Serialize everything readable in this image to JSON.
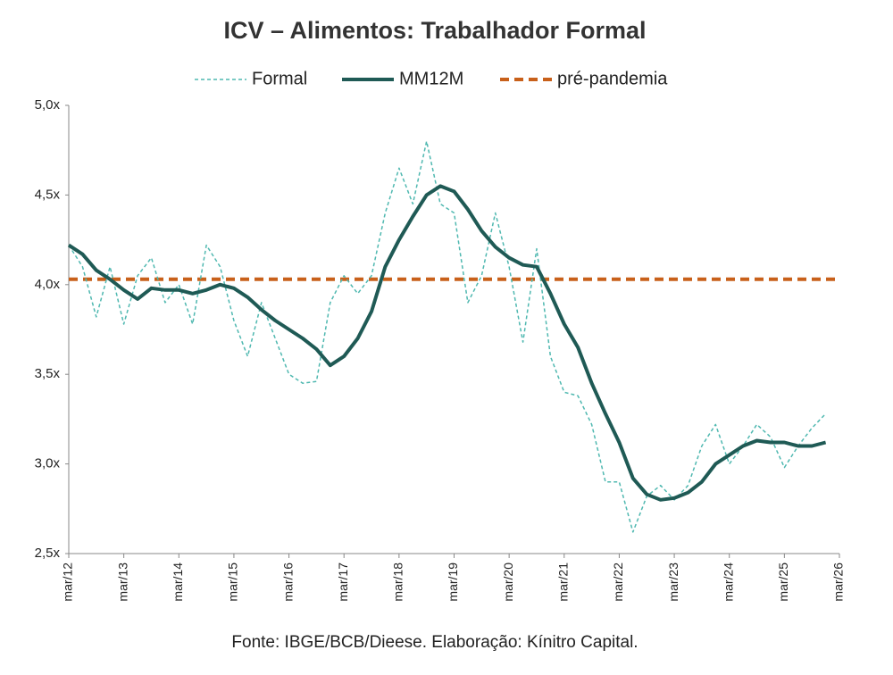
{
  "chart_data": {
    "type": "line",
    "title": "ICV – Alimentos: Trabalhador Formal",
    "source": "Fonte: IBGE/BCB/Dieese. Elaboração: Kínitro Capital.",
    "categories": [
      "mar/12",
      null,
      null,
      null,
      "mar/13",
      null,
      null,
      null,
      "mar/14",
      null,
      null,
      null,
      "mar/15",
      null,
      null,
      null,
      "mar/16",
      null,
      null,
      null,
      "mar/17",
      null,
      null,
      null,
      "mar/18",
      null,
      null,
      null,
      "mar/19",
      null,
      null,
      null,
      "mar/20",
      null,
      null,
      null,
      "mar/21",
      null,
      null,
      null,
      "mar/22",
      null,
      null,
      null,
      "mar/23",
      null,
      null,
      null,
      "mar/24",
      null,
      null,
      null,
      "mar/25",
      null,
      null,
      null,
      "mar/26"
    ],
    "series": [
      {
        "name": "Formal",
        "color": "#4fb8b0",
        "dashed": true,
        "width": 1.5,
        "values": [
          4.22,
          4.1,
          3.82,
          4.1,
          3.78,
          4.05,
          4.15,
          3.9,
          4.0,
          3.78,
          4.22,
          4.1,
          3.8,
          3.6,
          3.9,
          3.7,
          3.5,
          3.45,
          3.46,
          3.9,
          4.05,
          3.95,
          4.05,
          4.4,
          4.65,
          4.45,
          4.8,
          4.45,
          4.4,
          3.9,
          4.05,
          4.4,
          4.1,
          3.68,
          4.2,
          3.6,
          3.4,
          3.38,
          3.22,
          2.9,
          2.9,
          2.62,
          2.82,
          2.88,
          2.8,
          2.88,
          3.1,
          3.22,
          3.0,
          3.1,
          3.22,
          3.15,
          2.98,
          3.1,
          3.2,
          3.28,
          null
        ]
      },
      {
        "name": "MM12M",
        "color": "#1f5a55",
        "dashed": false,
        "width": 4,
        "values": [
          4.22,
          4.17,
          4.08,
          4.03,
          3.97,
          3.92,
          3.98,
          3.97,
          3.97,
          3.95,
          3.97,
          4.0,
          3.98,
          3.93,
          3.86,
          3.8,
          3.75,
          3.7,
          3.64,
          3.55,
          3.6,
          3.7,
          3.85,
          4.1,
          4.25,
          4.38,
          4.5,
          4.55,
          4.52,
          4.42,
          4.3,
          4.21,
          4.15,
          4.11,
          4.1,
          3.95,
          3.78,
          3.65,
          3.45,
          3.28,
          3.12,
          2.92,
          2.83,
          2.8,
          2.81,
          2.84,
          2.9,
          3.0,
          3.05,
          3.1,
          3.13,
          3.12,
          3.12,
          3.1,
          3.1,
          3.12,
          null
        ]
      }
    ],
    "reference_line": {
      "name": "pré-pandemia",
      "value": 4.03,
      "color": "#c8601a"
    },
    "ylim": [
      2.5,
      5.0
    ],
    "yticks": [
      {
        "value": 2.5,
        "label": "2,5x"
      },
      {
        "value": 3.0,
        "label": "3,0x"
      },
      {
        "value": 3.5,
        "label": "3,5x"
      },
      {
        "value": 4.0,
        "label": "4,0x"
      },
      {
        "value": 4.5,
        "label": "4,5x"
      },
      {
        "value": 5.0,
        "label": "5,0x"
      }
    ]
  }
}
